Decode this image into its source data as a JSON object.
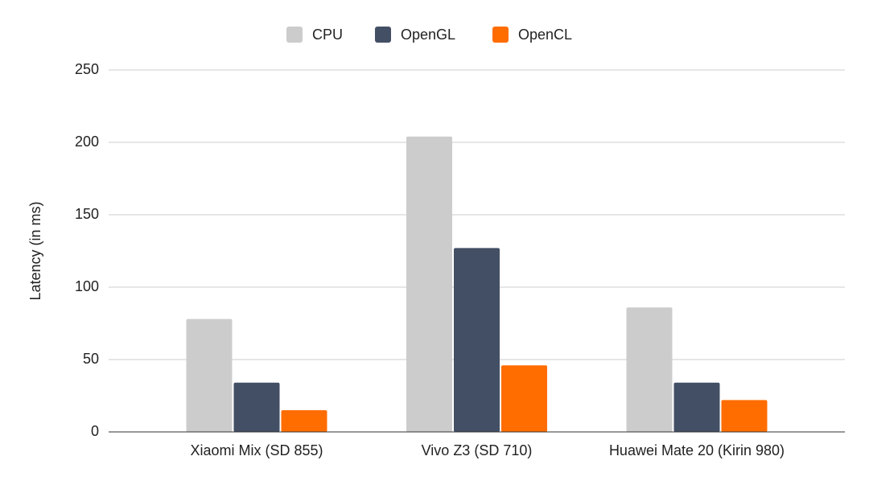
{
  "chart_data": {
    "type": "bar",
    "y_label": "Latency (in ms)",
    "categories": [
      "Xiaomi Mix (SD 855)",
      "Vivo Z3 (SD 710)",
      "Huawei Mate 20 (Kirin 980)"
    ],
    "series": [
      {
        "name": "CPU",
        "color": "#cccccc",
        "values": [
          78,
          204,
          86
        ]
      },
      {
        "name": "OpenGL",
        "color": "#434f64",
        "values": [
          34,
          127,
          34
        ]
      },
      {
        "name": "OpenCL",
        "color": "#ff6d01",
        "values": [
          15,
          46,
          22
        ]
      }
    ],
    "ylim": [
      0,
      250
    ],
    "yticks": [
      0,
      50,
      100,
      150,
      200,
      250
    ],
    "grid": true,
    "legend": "top"
  }
}
